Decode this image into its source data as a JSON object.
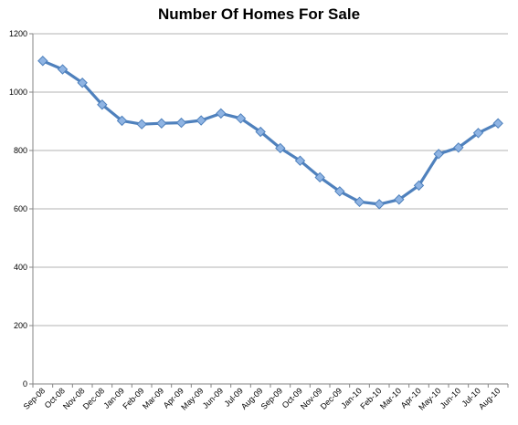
{
  "chart_data": {
    "type": "line",
    "title": "Number Of Homes For Sale",
    "xlabel": "",
    "ylabel": "",
    "ylim": [
      0,
      1200
    ],
    "yticks": [
      0,
      200,
      400,
      600,
      800,
      1000,
      1200
    ],
    "grid": true,
    "legend": "none",
    "categories": [
      "Sep-08",
      "Oct-08",
      "Nov-08",
      "Dec-08",
      "Jan-09",
      "Feb-09",
      "Mar-09",
      "Apr-09",
      "May-09",
      "Jun-09",
      "Jul-09",
      "Aug-09",
      "Sep-09",
      "Oct-09",
      "Nov-09",
      "Dec-09",
      "Jan-10",
      "Feb-10",
      "Mar-10",
      "Apr-10",
      "May-10",
      "Jun-10",
      "Jul-10",
      "Aug-10"
    ],
    "series": [
      {
        "color": "#4f81bd",
        "values": [
          1107,
          1078,
          1032,
          957,
          902,
          890,
          893,
          895,
          903,
          927,
          910,
          864,
          808,
          765,
          708,
          660,
          624,
          616,
          632,
          680,
          788,
          810,
          860,
          893
        ]
      }
    ]
  }
}
